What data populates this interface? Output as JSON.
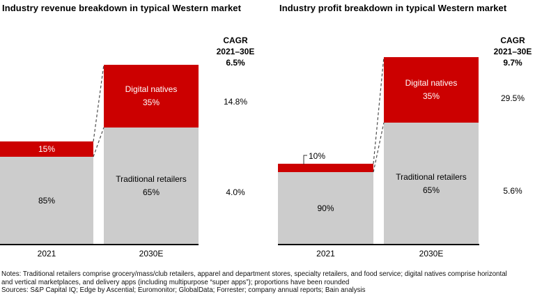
{
  "colors": {
    "digital_red": "#CC0000",
    "traditional_gray": "#CCCCCC",
    "axis_black": "#000000",
    "connector_gray": "#4D4D4D",
    "background": "#FFFFFF"
  },
  "chart_data": [
    {
      "type": "bar",
      "subtype": "stacked-percentage, bar height scaled to total market size",
      "title": "Industry revenue breakdown in typical Western market",
      "categories": [
        "2021",
        "2030E"
      ],
      "series": [
        {
          "name": "Traditional retailers",
          "values": [
            85,
            65
          ],
          "unit": "%",
          "color": "#CCCCCC",
          "cagr_2021_30E": "4.0%"
        },
        {
          "name": "Digital natives",
          "values": [
            15,
            35
          ],
          "unit": "%",
          "color": "#CC0000",
          "cagr_2021_30E": "14.8%"
        }
      ],
      "cagr_header": [
        "CAGR",
        "2021–30E"
      ],
      "total_cagr_2021_30E": "6.5%",
      "legend": "none (labels inside segments)",
      "bar_relative_total_heights": [
        1.0,
        1.74
      ]
    },
    {
      "type": "bar",
      "subtype": "stacked-percentage, bar height scaled to total market size",
      "title": "Industry profit breakdown in typical Western market",
      "categories": [
        "2021",
        "2030E"
      ],
      "series": [
        {
          "name": "Traditional retailers",
          "values": [
            90,
            65
          ],
          "unit": "%",
          "color": "#CCCCCC",
          "cagr_2021_30E": "5.6%"
        },
        {
          "name": "Digital natives",
          "values": [
            10,
            35
          ],
          "unit": "%",
          "color": "#CC0000",
          "cagr_2021_30E": "29.5%"
        }
      ],
      "cagr_header": [
        "CAGR",
        "2021–30E"
      ],
      "total_cagr_2021_30E": "9.7%",
      "legend": "none (labels inside segments; 2021 digital share called out above bar)",
      "bar_relative_total_heights": [
        1.0,
        2.32
      ]
    }
  ],
  "notes": {
    "line1": "Notes: Traditional retailers comprise grocery/mass/club retailers, apparel and department stores, specialty retailers, and food service; digital natives comprise horizontal",
    "line2": "and vertical marketplaces, and delivery apps (including multipurpose “super apps”); proportions have been rounded",
    "line3": "Sources: S&P Capital IQ; Edge by Ascential; Euromonitor; GlobalData; Forrester; company annual reports; Bain analysis"
  }
}
